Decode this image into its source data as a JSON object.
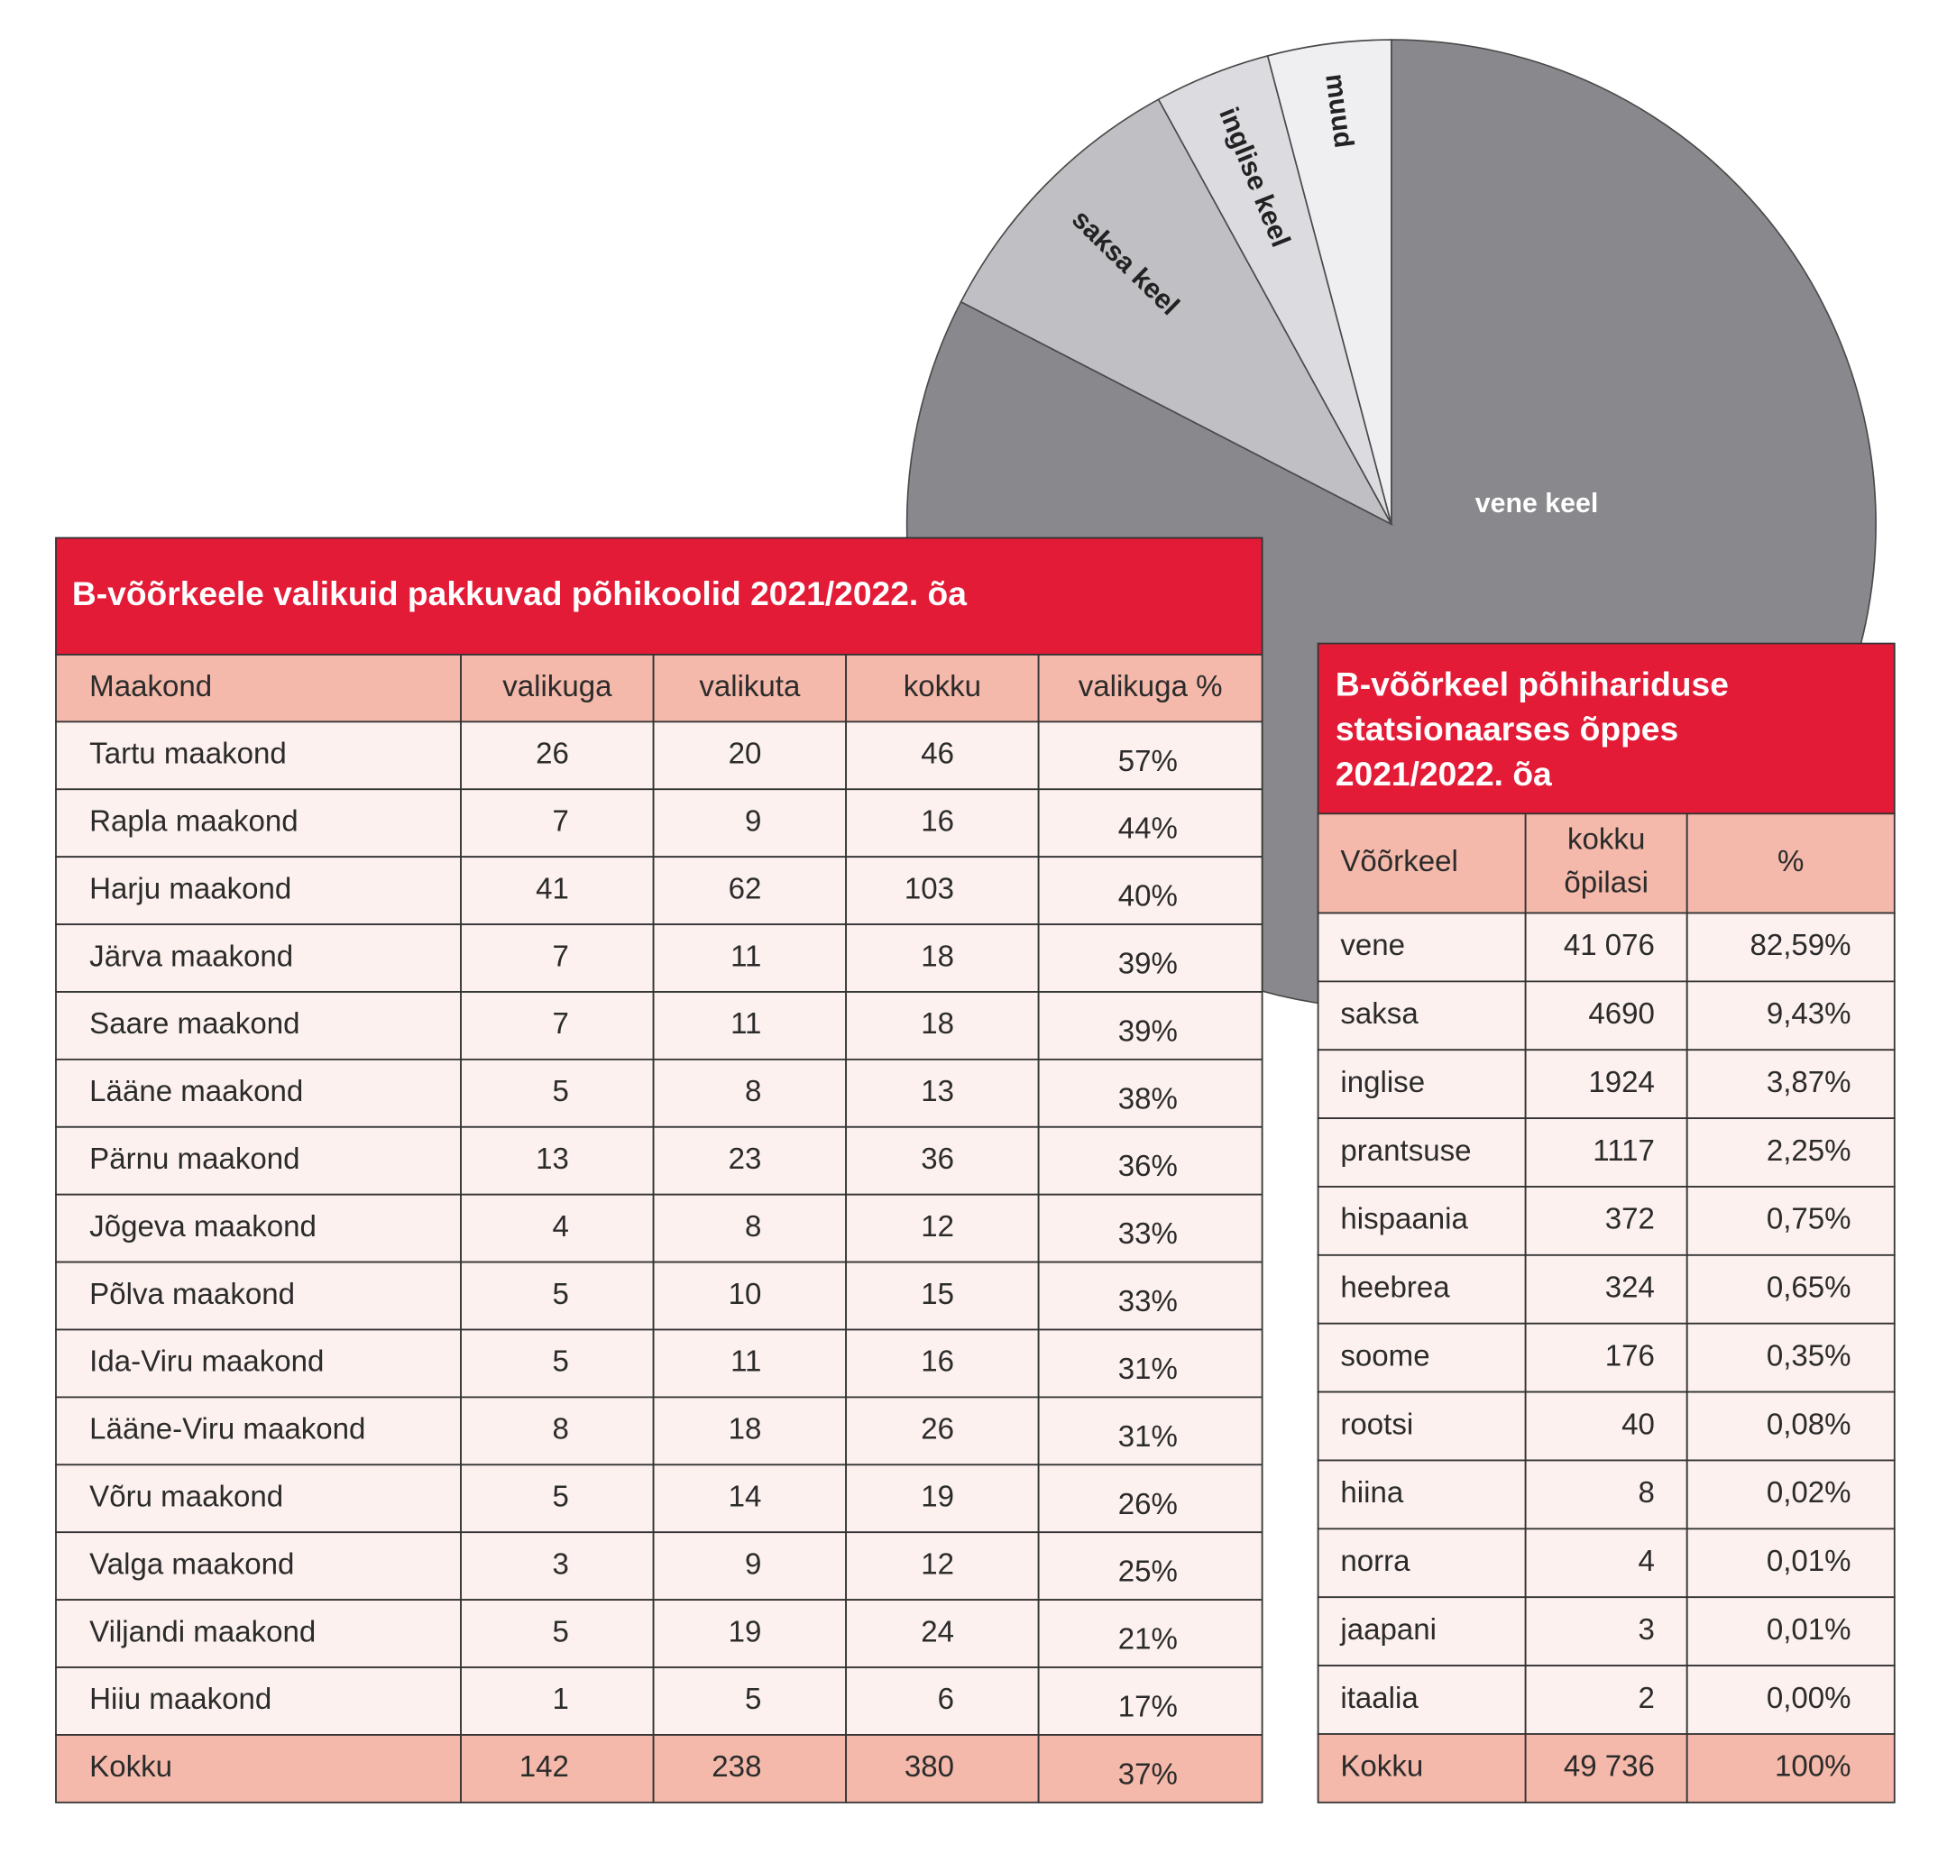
{
  "chart_data": {
    "type": "pie",
    "categories": [
      "vene keel",
      "saksa keel",
      "inglise keel",
      "muud"
    ],
    "values": [
      82.59,
      9.43,
      3.87,
      4.11
    ],
    "colors": [
      "#89888d",
      "#bfbfc4",
      "#dcdce0",
      "#efeff2"
    ]
  },
  "table_left": {
    "title": "B-võõrkeele valikuid pakkuvad põhikoolid 2021/2022. õa",
    "header": [
      "Maakond",
      "valikuga",
      "valikuta",
      "kokku",
      "valikuga %"
    ],
    "rows": [
      [
        "Tartu maakond",
        26,
        20,
        46,
        "57%"
      ],
      [
        "Rapla maakond",
        7,
        9,
        16,
        "44%"
      ],
      [
        "Harju maakond",
        41,
        62,
        103,
        "40%"
      ],
      [
        "Järva maakond",
        7,
        11,
        18,
        "39%"
      ],
      [
        "Saare maakond",
        7,
        11,
        18,
        "39%"
      ],
      [
        "Lääne maakond",
        5,
        8,
        13,
        "38%"
      ],
      [
        "Pärnu maakond",
        13,
        23,
        36,
        "36%"
      ],
      [
        "Jõgeva maakond",
        4,
        8,
        12,
        "33%"
      ],
      [
        "Põlva maakond",
        5,
        10,
        15,
        "33%"
      ],
      [
        "Ida-Viru maakond",
        5,
        11,
        16,
        "31%"
      ],
      [
        "Lääne-Viru maakond",
        8,
        18,
        26,
        "31%"
      ],
      [
        "Võru maakond",
        5,
        14,
        19,
        "26%"
      ],
      [
        "Valga maakond",
        3,
        9,
        12,
        "25%"
      ],
      [
        "Viljandi maakond",
        5,
        19,
        24,
        "21%"
      ],
      [
        "Hiiu maakond",
        1,
        5,
        6,
        "17%"
      ]
    ],
    "total": [
      "Kokku",
      142,
      238,
      380,
      "37%"
    ]
  },
  "table_right": {
    "title_lines": [
      "B-võõrkeel põhihariduse",
      "statsionaarses õppes",
      "2021/2022. õa"
    ],
    "header": [
      "Võõrkeel",
      [
        "kokku",
        "õpilasi"
      ],
      "%"
    ],
    "rows": [
      [
        "vene",
        "41 076",
        "82,59%"
      ],
      [
        "saksa",
        4690,
        "9,43%"
      ],
      [
        "inglise",
        1924,
        "3,87%"
      ],
      [
        "prantsuse",
        1117,
        "2,25%"
      ],
      [
        "hispaania",
        372,
        "0,75%"
      ],
      [
        "heebrea",
        324,
        "0,65%"
      ],
      [
        "soome",
        176,
        "0,35%"
      ],
      [
        "rootsi",
        40,
        "0,08%"
      ],
      [
        "hiina",
        8,
        "0,02%"
      ],
      [
        "norra",
        4,
        "0,01%"
      ],
      [
        "jaapani",
        3,
        "0,01%"
      ],
      [
        "itaalia",
        2,
        "0,00%"
      ]
    ],
    "total": [
      "Kokku",
      "49 736",
      "100%"
    ]
  }
}
